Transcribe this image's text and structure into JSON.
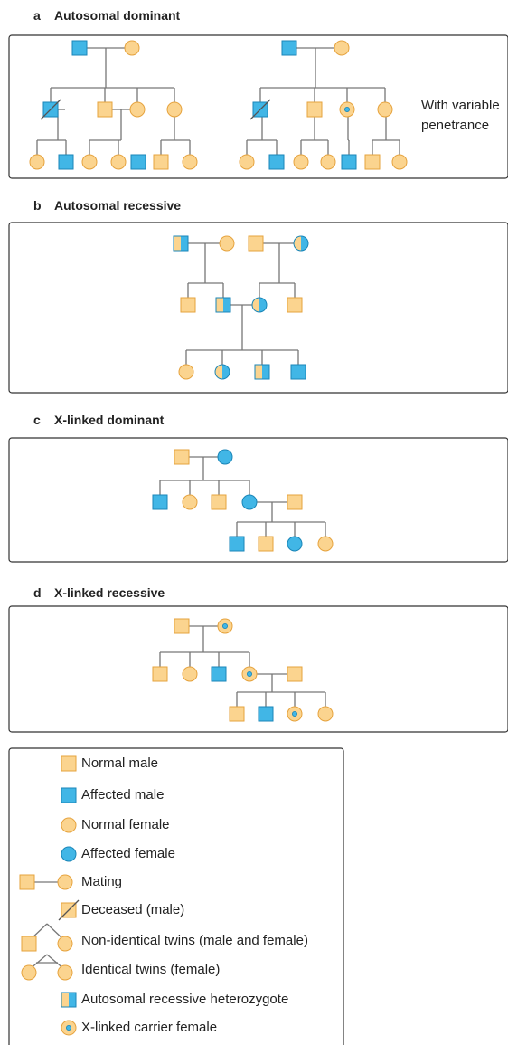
{
  "sections": {
    "a": {
      "letter": "a",
      "title": "Autosomal dominant",
      "note_line1": "With variable",
      "note_line2": "penetrance"
    },
    "b": {
      "letter": "b",
      "title": "Autosomal recessive"
    },
    "c": {
      "letter": "c",
      "title": "X-linked dominant"
    },
    "d": {
      "letter": "d",
      "title": "X-linked recessive"
    }
  },
  "legend": {
    "normal_male": "Normal male",
    "affected_male": "Affected male",
    "normal_female": "Normal female",
    "affected_female": "Affected female",
    "mating": "Mating",
    "deceased_male": "Deceased (male)",
    "nonidentical_twins": "Non-identical twins (male and female)",
    "identical_twins": "Identical twins (female)",
    "ar_heterozygote": "Autosomal recessive heterozygote",
    "xl_carrier": "X-linked carrier female"
  },
  "colors": {
    "normal_fill": "#FBD48F",
    "normal_stroke": "#E6A33E",
    "affected_fill": "#41B6E6",
    "affected_stroke": "#1A86B8",
    "line": "#777777",
    "frame": "#333333"
  }
}
